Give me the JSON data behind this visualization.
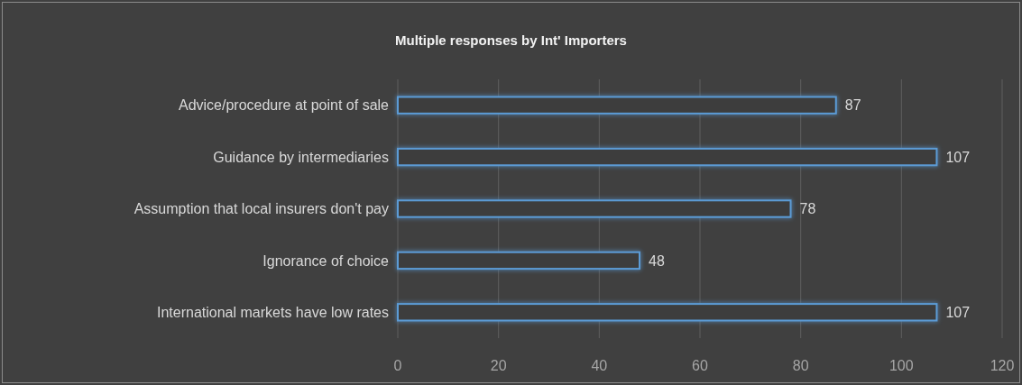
{
  "chart_data": {
    "type": "bar",
    "orientation": "horizontal",
    "title": "Multiple responses by Int' Importers",
    "categories": [
      "Advice/procedure at point of sale",
      "Guidance by intermediaries",
      "Assumption that local insurers don't pay",
      "Ignorance of choice",
      "International markets have low rates"
    ],
    "values": [
      87,
      107,
      78,
      48,
      107
    ],
    "color": "#5b9bd5",
    "xlim": [
      0,
      120
    ],
    "xticks": [
      0,
      20,
      40,
      60,
      80,
      100,
      120
    ],
    "grid": "x",
    "data_labels": true
  }
}
